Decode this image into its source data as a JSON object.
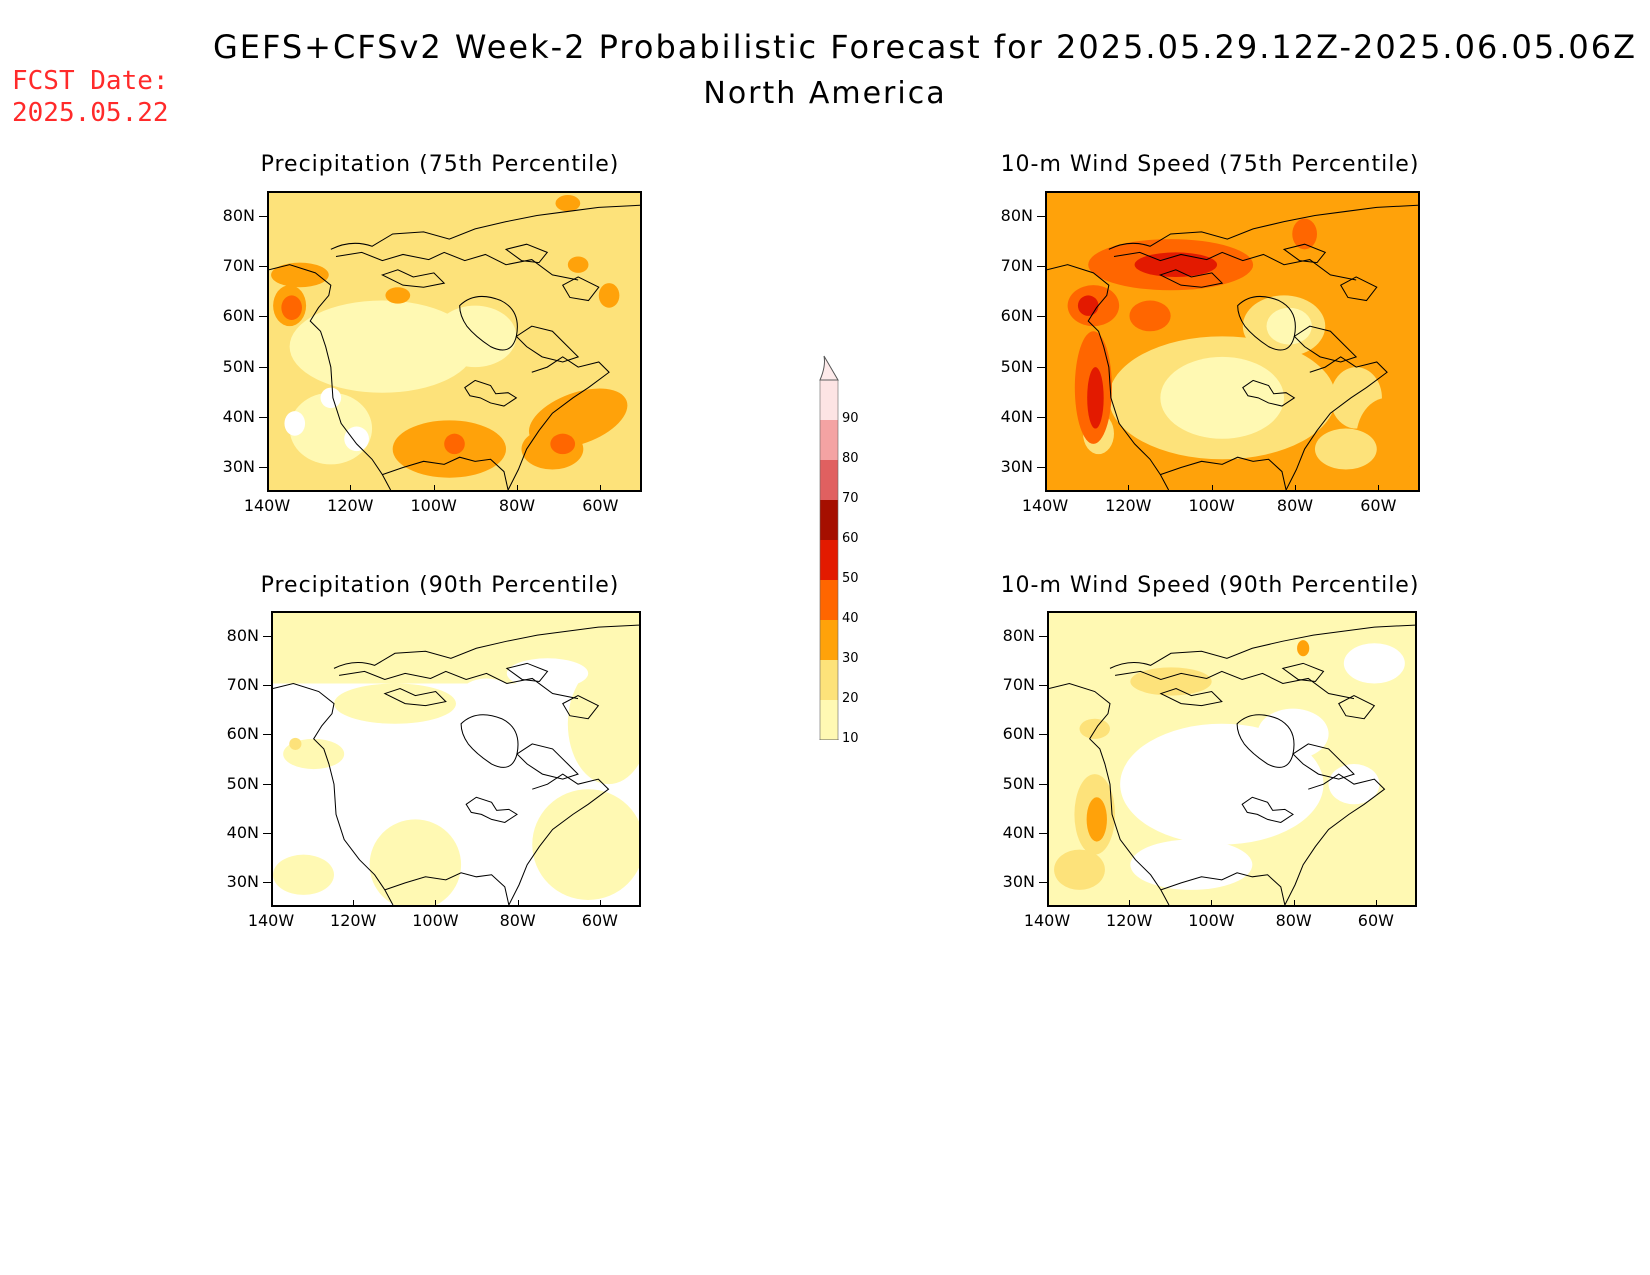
{
  "header": {
    "title": "GEFS+CFSv2 Week-2 Probabilistic Forecast for 2025.05.29.12Z-2025.06.05.06Z",
    "region": "North America",
    "fcst_label": "FCST Date:",
    "fcst_date": "2025.05.22"
  },
  "panels": [
    {
      "title": "Precipitation (75th Percentile)"
    },
    {
      "title": "10-m Wind Speed (75th Percentile)"
    },
    {
      "title": "Precipitation (90th Percentile)"
    },
    {
      "title": "10-m Wind Speed (90th Percentile)"
    }
  ],
  "axes": {
    "lat_labels": [
      "80N",
      "70N",
      "60N",
      "50N",
      "40N",
      "30N"
    ],
    "lon_labels": [
      "140W",
      "120W",
      "100W",
      "80W",
      "60W"
    ]
  },
  "colorbar": {
    "levels": [
      "10",
      "20",
      "30",
      "40",
      "50",
      "60",
      "70",
      "80",
      "90"
    ],
    "colors": [
      "#fff9b3",
      "#fde27a",
      "#ffa20a",
      "#ff6600",
      "#e31a00",
      "#a50f00",
      "#e06060",
      "#f4a3a3",
      "#fde4e4"
    ]
  }
}
